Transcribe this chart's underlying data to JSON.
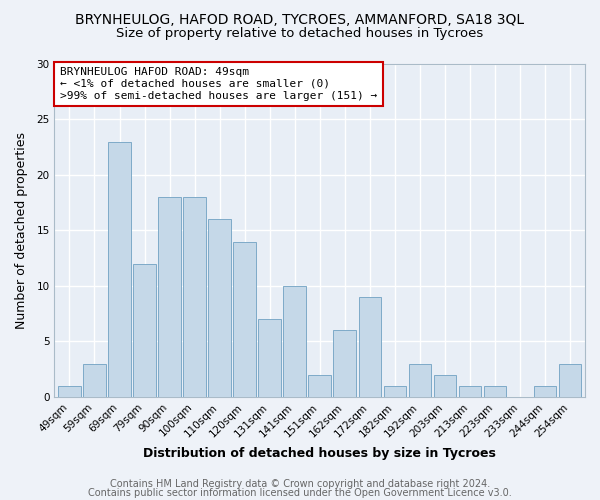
{
  "title": "BRYNHEULOG, HAFOD ROAD, TYCROES, AMMANFORD, SA18 3QL",
  "subtitle": "Size of property relative to detached houses in Tycroes",
  "xlabel": "Distribution of detached houses by size in Tycroes",
  "ylabel": "Number of detached properties",
  "bar_labels": [
    "49sqm",
    "59sqm",
    "69sqm",
    "79sqm",
    "90sqm",
    "100sqm",
    "110sqm",
    "120sqm",
    "131sqm",
    "141sqm",
    "151sqm",
    "162sqm",
    "172sqm",
    "182sqm",
    "192sqm",
    "203sqm",
    "213sqm",
    "223sqm",
    "233sqm",
    "244sqm",
    "254sqm"
  ],
  "bar_values": [
    1,
    3,
    23,
    12,
    18,
    18,
    16,
    14,
    7,
    10,
    2,
    6,
    9,
    1,
    3,
    2,
    1,
    1,
    0,
    1,
    3
  ],
  "bar_color": "#c5d8e8",
  "bar_edge_color": "#7eaac8",
  "ylim": [
    0,
    30
  ],
  "yticks": [
    0,
    5,
    10,
    15,
    20,
    25,
    30
  ],
  "annotation_text": "BRYNHEULOG HAFOD ROAD: 49sqm\n← <1% of detached houses are smaller (0)\n>99% of semi-detached houses are larger (151) →",
  "annotation_box_color": "#ffffff",
  "annotation_box_edge": "#cc0000",
  "footer_line1": "Contains HM Land Registry data © Crown copyright and database right 2024.",
  "footer_line2": "Contains public sector information licensed under the Open Government Licence v3.0.",
  "background_color": "#eef2f8",
  "plot_bg_color": "#e8eef6",
  "grid_color": "#ffffff",
  "title_fontsize": 10,
  "subtitle_fontsize": 9.5,
  "axis_label_fontsize": 9,
  "tick_fontsize": 7.5,
  "annotation_fontsize": 8,
  "footer_fontsize": 7
}
